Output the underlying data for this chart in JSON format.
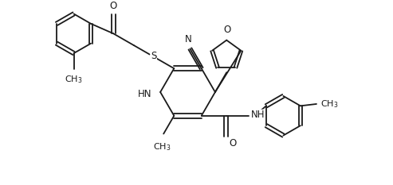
{
  "bg_color": "#ffffff",
  "line_color": "#1a1a1a",
  "line_width": 1.3,
  "font_size": 8.5,
  "figsize": [
    4.93,
    2.33
  ],
  "dpi": 100,
  "xlim": [
    0,
    9.86
  ],
  "ylim": [
    0,
    4.66
  ]
}
